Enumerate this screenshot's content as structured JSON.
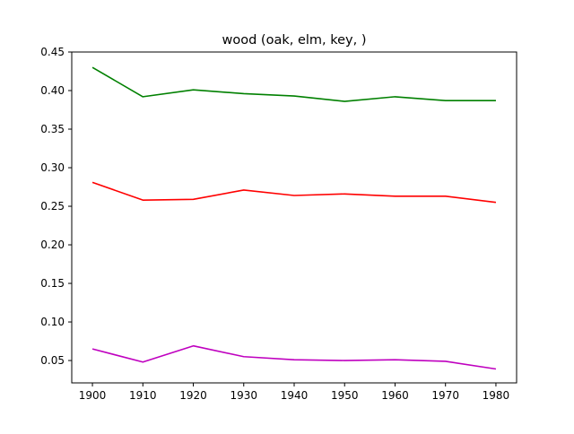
{
  "chart_data": {
    "type": "line",
    "title": "wood (oak, elm, key, )",
    "xlabel": "",
    "ylabel": "",
    "x": [
      1900,
      1910,
      1920,
      1930,
      1940,
      1950,
      1960,
      1970,
      1980
    ],
    "x_ticks": [
      "1900",
      "1910",
      "1920",
      "1930",
      "1940",
      "1950",
      "1960",
      "1970",
      "1980"
    ],
    "xlim": [
      1895.9,
      1984.1
    ],
    "y_ticks": [
      "0.05",
      "0.10",
      "0.15",
      "0.20",
      "0.25",
      "0.30",
      "0.35",
      "0.40",
      "0.45"
    ],
    "ylim": [
      0.021,
      0.45
    ],
    "grid": false,
    "legend": false,
    "series": [
      {
        "color": "#008000",
        "values": [
          0.43,
          0.392,
          0.401,
          0.396,
          0.393,
          0.386,
          0.392,
          0.387,
          0.387
        ]
      },
      {
        "color": "#ff0000",
        "values": [
          0.281,
          0.258,
          0.259,
          0.271,
          0.264,
          0.266,
          0.263,
          0.263,
          0.255
        ]
      },
      {
        "color": "#bf00bf",
        "values": [
          0.065,
          0.048,
          0.069,
          0.055,
          0.051,
          0.05,
          0.051,
          0.049,
          0.039
        ]
      }
    ]
  }
}
